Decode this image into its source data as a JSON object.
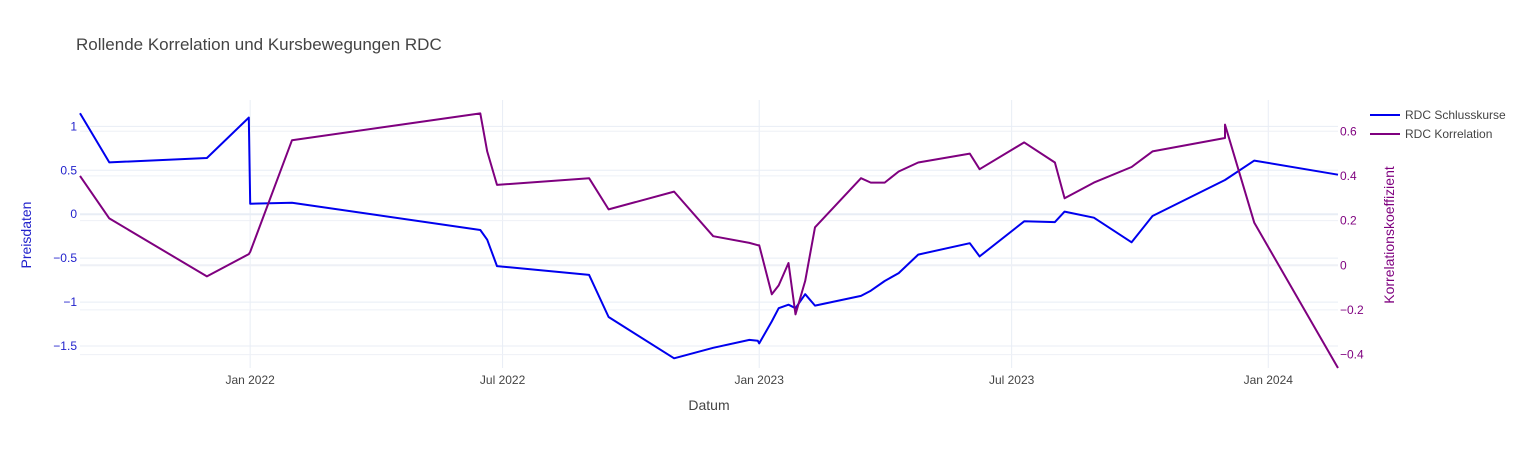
{
  "chart_data": {
    "type": "line",
    "title": "Rollende Korrelation und Kursbewegungen RDC",
    "xlabel": "Datum",
    "ylabel": "Preisdaten",
    "y2label": "Korrelationskoeffizient",
    "xlim": [
      "2021-09-01",
      "2024-02-20"
    ],
    "ylim": [
      -1.75,
      1.3
    ],
    "y2lim": [
      -0.46,
      0.74
    ],
    "x_ticks": [
      {
        "date": "2022-01-01",
        "label": "Jan 2022"
      },
      {
        "date": "2022-07-01",
        "label": "Jul 2022"
      },
      {
        "date": "2023-01-01",
        "label": "Jan 2023"
      },
      {
        "date": "2023-07-01",
        "label": "Jul 2023"
      },
      {
        "date": "2024-01-01",
        "label": "Jan 2024"
      }
    ],
    "y_ticks": [
      {
        "value": 1,
        "label": "1"
      },
      {
        "value": 0.5,
        "label": "0.5"
      },
      {
        "value": 0,
        "label": "0"
      },
      {
        "value": -0.5,
        "label": "−0.5"
      },
      {
        "value": -1,
        "label": "−1"
      },
      {
        "value": -1.5,
        "label": "−1.5"
      }
    ],
    "y2_ticks": [
      {
        "value": 0.6,
        "label": "0.6"
      },
      {
        "value": 0.4,
        "label": "0.4"
      },
      {
        "value": 0.2,
        "label": "0.2"
      },
      {
        "value": 0,
        "label": "0"
      },
      {
        "value": -0.2,
        "label": "−0.2"
      },
      {
        "value": -0.4,
        "label": "−0.4"
      }
    ],
    "grid": true,
    "legend_position": "top-right",
    "series": [
      {
        "name": "RDC Schlusskurse",
        "color": "#0000ee",
        "axis": "y",
        "points": [
          [
            "2021-09-01",
            1.15
          ],
          [
            "2021-09-22",
            0.59
          ],
          [
            "2021-12-01",
            0.64
          ],
          [
            "2021-12-31",
            1.1
          ],
          [
            "2022-01-01",
            0.12
          ],
          [
            "2022-01-31",
            0.13
          ],
          [
            "2022-06-15",
            -0.18
          ],
          [
            "2022-06-20",
            -0.29
          ],
          [
            "2022-06-27",
            -0.59
          ],
          [
            "2022-09-01",
            -0.69
          ],
          [
            "2022-09-15",
            -1.17
          ],
          [
            "2022-11-01",
            -1.64
          ],
          [
            "2022-11-29",
            -1.52
          ],
          [
            "2022-12-25",
            -1.43
          ],
          [
            "2022-12-31",
            -1.44
          ],
          [
            "2023-01-01",
            -1.47
          ],
          [
            "2023-01-10",
            -1.22
          ],
          [
            "2023-01-15",
            -1.07
          ],
          [
            "2023-01-22",
            -1.03
          ],
          [
            "2023-01-27",
            -1.07
          ],
          [
            "2023-02-03",
            -0.91
          ],
          [
            "2023-02-10",
            -1.04
          ],
          [
            "2023-03-15",
            -0.93
          ],
          [
            "2023-03-22",
            -0.87
          ],
          [
            "2023-04-01",
            -0.76
          ],
          [
            "2023-04-11",
            -0.67
          ],
          [
            "2023-04-25",
            -0.46
          ],
          [
            "2023-06-01",
            -0.33
          ],
          [
            "2023-06-08",
            -0.48
          ],
          [
            "2023-07-10",
            -0.08
          ],
          [
            "2023-08-01",
            -0.09
          ],
          [
            "2023-08-08",
            0.03
          ],
          [
            "2023-08-29",
            -0.04
          ],
          [
            "2023-09-25",
            -0.32
          ],
          [
            "2023-10-10",
            -0.02
          ],
          [
            "2023-12-01",
            0.39
          ],
          [
            "2023-12-22",
            0.61
          ],
          [
            "2024-02-20",
            0.45
          ]
        ]
      },
      {
        "name": "RDC Korrelation",
        "color": "#7f007f",
        "axis": "y2",
        "points": [
          [
            "2021-09-01",
            0.4
          ],
          [
            "2021-09-22",
            0.21
          ],
          [
            "2021-12-01",
            -0.05
          ],
          [
            "2021-12-31",
            0.05
          ],
          [
            "2022-01-01",
            0.06
          ],
          [
            "2022-01-31",
            0.56
          ],
          [
            "2022-06-15",
            0.68
          ],
          [
            "2022-06-20",
            0.51
          ],
          [
            "2022-06-27",
            0.36
          ],
          [
            "2022-09-01",
            0.39
          ],
          [
            "2022-09-15",
            0.25
          ],
          [
            "2022-11-01",
            0.33
          ],
          [
            "2022-11-29",
            0.13
          ],
          [
            "2022-12-25",
            0.1
          ],
          [
            "2022-12-31",
            0.09
          ],
          [
            "2023-01-01",
            0.09
          ],
          [
            "2023-01-10",
            -0.13
          ],
          [
            "2023-01-15",
            -0.09
          ],
          [
            "2023-01-22",
            0.01
          ],
          [
            "2023-01-27",
            -0.22
          ],
          [
            "2023-02-03",
            -0.07
          ],
          [
            "2023-02-10",
            0.17
          ],
          [
            "2023-03-15",
            0.39
          ],
          [
            "2023-03-22",
            0.37
          ],
          [
            "2023-04-01",
            0.37
          ],
          [
            "2023-04-11",
            0.42
          ],
          [
            "2023-04-25",
            0.46
          ],
          [
            "2023-06-01",
            0.5
          ],
          [
            "2023-06-08",
            0.43
          ],
          [
            "2023-07-10",
            0.55
          ],
          [
            "2023-08-01",
            0.46
          ],
          [
            "2023-08-08",
            0.3
          ],
          [
            "2023-08-29",
            0.37
          ],
          [
            "2023-09-25",
            0.44
          ],
          [
            "2023-10-10",
            0.51
          ],
          [
            "2023-12-01",
            0.57
          ],
          [
            "2023-12-01",
            0.63
          ],
          [
            "2023-12-22",
            0.19
          ],
          [
            "2024-02-20",
            -0.46
          ]
        ]
      }
    ]
  }
}
